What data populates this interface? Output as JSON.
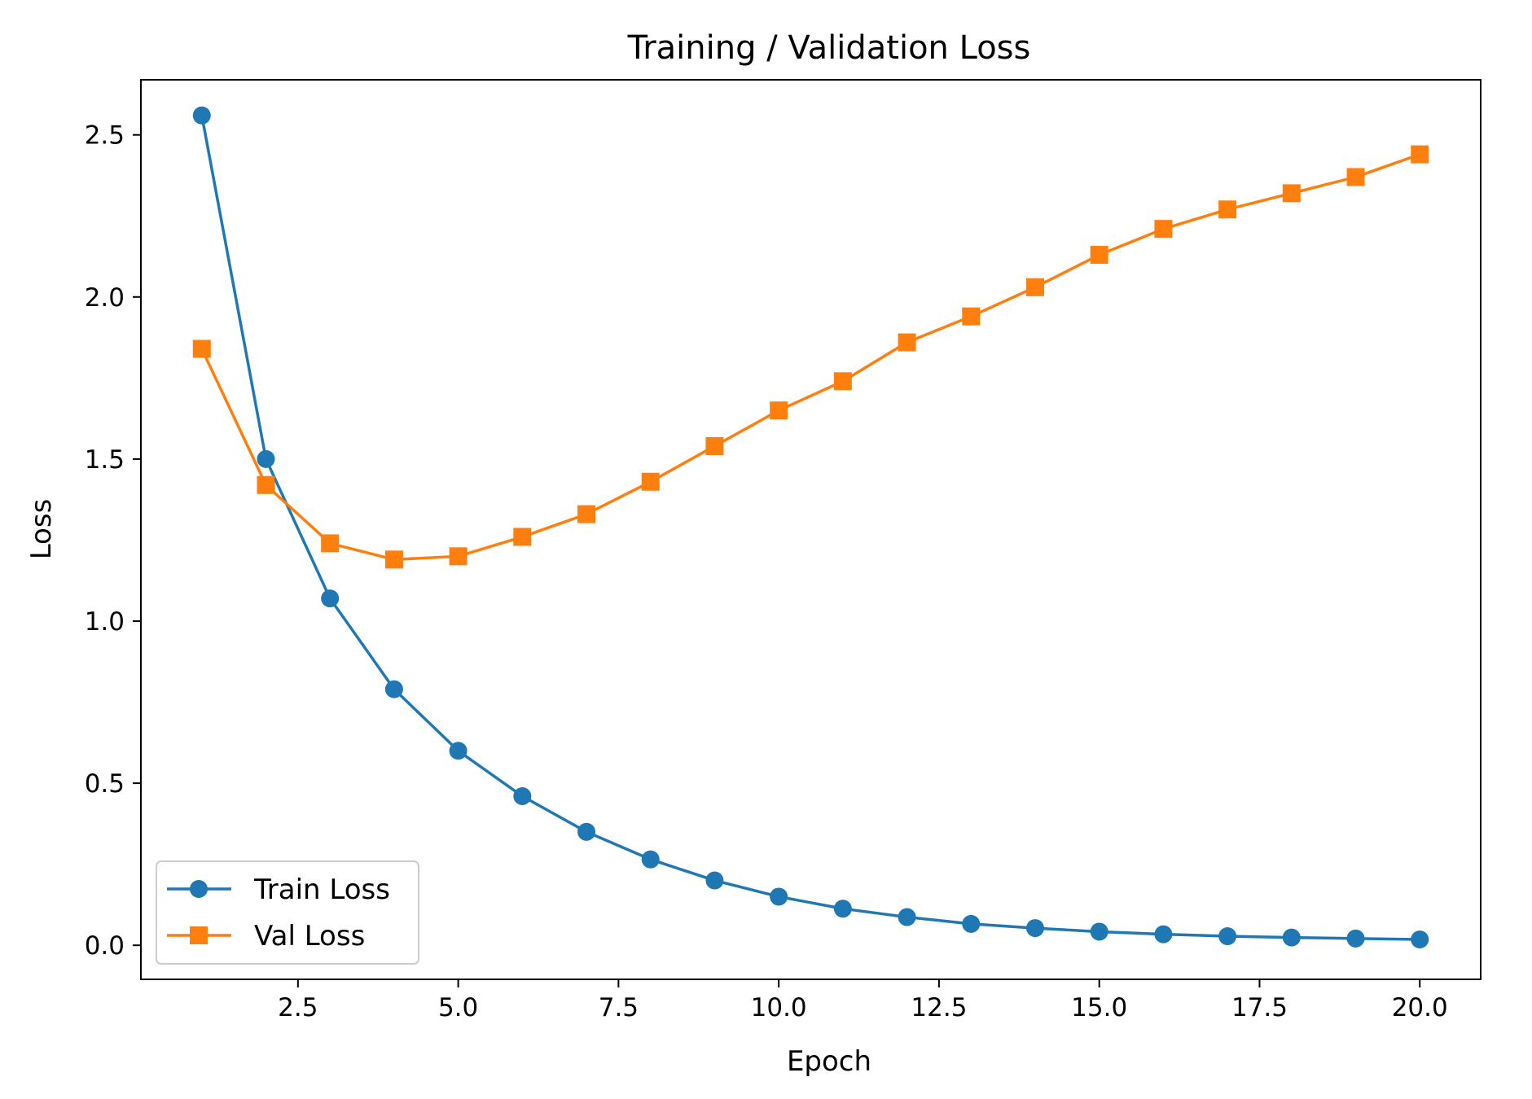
{
  "chart_data": {
    "type": "line",
    "title": "Training / Validation Loss",
    "xlabel": "Epoch",
    "ylabel": "Loss",
    "xlim": [
      0.05,
      20.95
    ],
    "ylim": [
      -0.105,
      2.67
    ],
    "xticks": [
      2.5,
      5.0,
      7.5,
      10.0,
      12.5,
      15.0,
      17.5,
      20.0
    ],
    "xtick_labels": [
      "2.5",
      "5.0",
      "7.5",
      "10.0",
      "12.5",
      "15.0",
      "17.5",
      "20.0"
    ],
    "yticks": [
      0.0,
      0.5,
      1.0,
      1.5,
      2.0,
      2.5
    ],
    "ytick_labels": [
      "0.0",
      "0.5",
      "1.0",
      "1.5",
      "2.0",
      "2.5"
    ],
    "grid": false,
    "legend_position": "lower-left",
    "x": [
      1,
      2,
      3,
      4,
      5,
      6,
      7,
      8,
      9,
      10,
      11,
      12,
      13,
      14,
      15,
      16,
      17,
      18,
      19,
      20
    ],
    "series": [
      {
        "name": "Train Loss",
        "color": "#1f77b4",
        "marker": "circle",
        "values": [
          2.56,
          1.5,
          1.07,
          0.79,
          0.6,
          0.46,
          0.35,
          0.265,
          0.2,
          0.15,
          0.113,
          0.087,
          0.066,
          0.053,
          0.042,
          0.034,
          0.028,
          0.024,
          0.021,
          0.018
        ]
      },
      {
        "name": "Val Loss",
        "color": "#ff7f0e",
        "marker": "square",
        "values": [
          1.84,
          1.42,
          1.24,
          1.19,
          1.2,
          1.26,
          1.33,
          1.43,
          1.54,
          1.65,
          1.74,
          1.86,
          1.94,
          2.03,
          2.13,
          2.21,
          2.27,
          2.32,
          2.37,
          2.44
        ]
      }
    ]
  }
}
